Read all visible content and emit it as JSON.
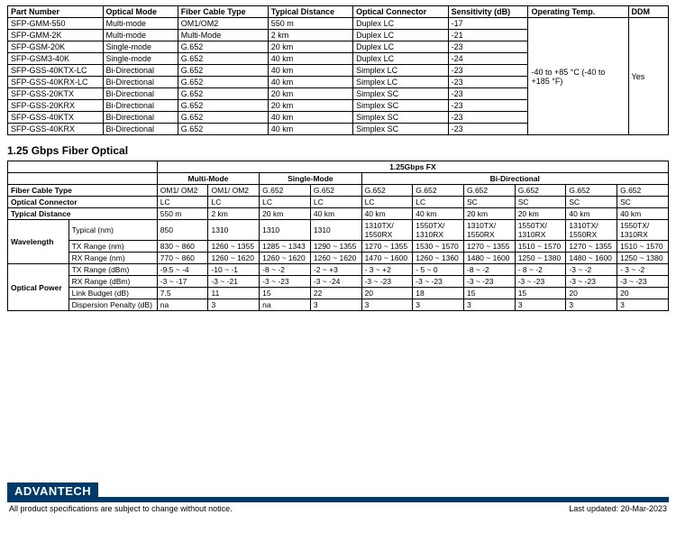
{
  "table1": {
    "headers": [
      "Part Number",
      "Optical Mode",
      "Fiber Cable Type",
      "Typical Distance",
      "Optical Connector",
      "Sensitivity (dB)",
      "Operating Temp.",
      "DDM"
    ],
    "operating_temp": "-40 to +85 °C\n(-40 to +185 °F)",
    "ddm": "Yes",
    "rows": [
      [
        "SFP-GMM-550",
        "Multi-mode",
        "OM1/OM2",
        "550 m",
        "Duplex LC",
        "-17"
      ],
      [
        "SFP-GMM-2K",
        "Multi-mode",
        "Multi-Mode",
        "2 km",
        "Duplex LC",
        "-21"
      ],
      [
        "SFP-GSM-20K",
        "Single-mode",
        "G.652",
        "20 km",
        "Duplex LC",
        "-23"
      ],
      [
        "SFP-GSM3-40K",
        "Single-mode",
        "G.652",
        "40 km",
        "Duplex LC",
        "-24"
      ],
      [
        "SFP-GSS-40KTX-LC",
        "Bi-Directional",
        "G.652",
        "40 km",
        "Simplex LC",
        "-23"
      ],
      [
        "SFP-GSS-40KRX-LC",
        "Bi-Directional",
        "G.652",
        "40 km",
        "Simplex LC",
        "-23"
      ],
      [
        "SFP-GSS-20KTX",
        "Bi-Directional",
        "G.652",
        "20 km",
        "Simplex SC",
        "-23"
      ],
      [
        "SFP-GSS-20KRX",
        "Bi-Directional",
        "G.652",
        "20 km",
        "Simplex SC",
        "-23"
      ],
      [
        "SFP-GSS-40KTX",
        "Bi-Directional",
        "G.652",
        "40 km",
        "Simplex SC",
        "-23"
      ],
      [
        "SFP-GSS-40KRX",
        "Bi-Directional",
        "G.652",
        "40 km",
        "Simplex SC",
        "-23"
      ]
    ]
  },
  "section2_title": "1.25 Gbps Fiber Optical",
  "table2": {
    "super_header": "1.25Gbps FX",
    "mode_headers": [
      "Multi-Mode",
      "Single-Mode",
      "Bi-Directional"
    ],
    "row_labels": {
      "fiber": "Fiber Cable Type",
      "connector": "Optical Connector",
      "distance": "Typical Distance",
      "wavelength": "Wavelength",
      "w_typical": "Typical (nm)",
      "w_txrange": "TX Range (nm)",
      "w_rxrange": "RX Range (nm)",
      "opt_power": "Optical Power",
      "p_txrange": "TX Range (dBm)",
      "p_rxrange": "RX Range (dBm)",
      "p_link": "Link Budget (dB)",
      "p_disp": "Dispersion Penalty (dB)"
    },
    "fiber": [
      "OM1/ OM2",
      "OM1/ OM2",
      "G.652",
      "G.652",
      "G.652",
      "G.652",
      "G.652",
      "G.652",
      "G.652",
      "G.652"
    ],
    "connector": [
      "LC",
      "LC",
      "LC",
      "LC",
      "LC",
      "LC",
      "SC",
      "SC",
      "SC",
      "SC"
    ],
    "distance": [
      "550 m",
      "2 km",
      "20 km",
      "40 km",
      "40 km",
      "40 km",
      "20 km",
      "20 km",
      "40 km",
      "40 km"
    ],
    "w_typical": [
      "850",
      "1310",
      "1310",
      "1310",
      "1310TX/\n1550RX",
      "1550TX/\n1310RX",
      "1310TX/\n1550RX",
      "1550TX/\n1310RX",
      "1310TX/\n1550RX",
      "1550TX/\n1310RX"
    ],
    "w_txrange": [
      "830 ~ 860",
      "1260 ~ 1355",
      "1285 ~ 1343",
      "1290 ~ 1355",
      "1270 ~ 1355",
      "1530 ~ 1570",
      "1270 ~ 1355",
      "1510 ~ 1570",
      "1270 ~ 1355",
      "1510 ~ 1570"
    ],
    "w_rxrange": [
      "770 ~ 860",
      "1260 ~ 1620",
      "1260 ~ 1620",
      "1260 ~ 1620",
      "1470 ~ 1600",
      "1260 ~ 1360",
      "1480 ~ 1600",
      "1250 ~ 1380",
      "1480 ~ 1600",
      "1250 ~ 1380"
    ],
    "p_txrange": [
      "-9.5 ~ -4",
      "-10 ~ -1",
      "-8 ~ -2",
      "-2 ~ +3",
      "- 3 ~ +2",
      "- 5 ~ 0",
      "-8 ~ -2",
      "- 8 ~ -2",
      "-3 ~ -2",
      "- 3 ~ -2"
    ],
    "p_rxrange": [
      "-3 ~ -17",
      "-3 ~ -21",
      "-3 ~ -23",
      "-3 ~ -24",
      "-3 ~ -23",
      "-3 ~ -23",
      "-3 ~ -23",
      "-3 ~ -23",
      "-3 ~ -23",
      "-3 ~ -23"
    ],
    "p_link": [
      "7.5",
      "11",
      "15",
      "22",
      "20",
      "18",
      "15",
      "15",
      "20",
      "20"
    ],
    "p_disp": [
      "na",
      "3",
      "na",
      "3",
      "3",
      "3",
      "3",
      "3",
      "3",
      "3"
    ]
  },
  "footer": {
    "brand": "ADVANTECH",
    "notice": "All product specifications are subject to change without notice.",
    "updated": "Last updated: 20-Mar-2023"
  },
  "colors": {
    "brand_bg": "#003a6b",
    "border": "#000000",
    "text": "#000000",
    "background": "#ffffff"
  }
}
